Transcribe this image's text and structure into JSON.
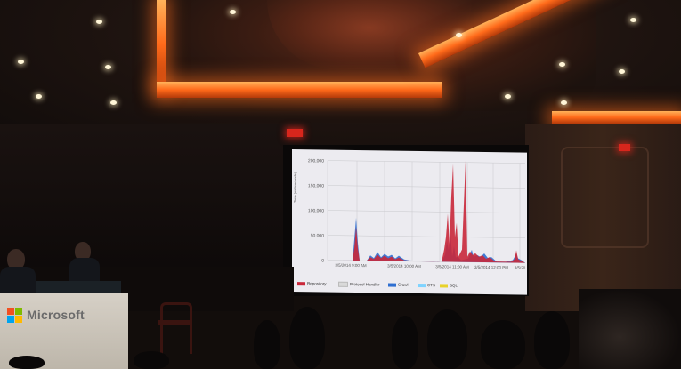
{
  "screen": {
    "y_axis_label": "Time (milliseconds)",
    "y_ticks": [
      "200,000",
      "150,000",
      "100,000",
      "50,000",
      "0"
    ],
    "x_ticks": [
      "3/5/2014 9:00 AM",
      "3/5/2014 10:00 AM",
      "3/5/2014 11:00 AM",
      "3/5/2014 12:00 PM",
      "3/5/20"
    ],
    "legend": [
      {
        "label": "Repository",
        "color": "#c9283a"
      },
      {
        "label": "Protocol Handler",
        "color": "#d9d9d9"
      },
      {
        "label": "Crawl",
        "color": "#2f6fd1"
      },
      {
        "label": "CTS",
        "color": "#7fd3ff"
      },
      {
        "label": "SQL",
        "color": "#e8d22a"
      }
    ]
  },
  "podium": {
    "brand_text": "Microsoft"
  },
  "colors": {
    "ceiling_glow": "#ff7a24",
    "exit_sign": "#d8261c",
    "repository_series": "#c9283a",
    "crawl_series": "#2f6fd1"
  }
}
